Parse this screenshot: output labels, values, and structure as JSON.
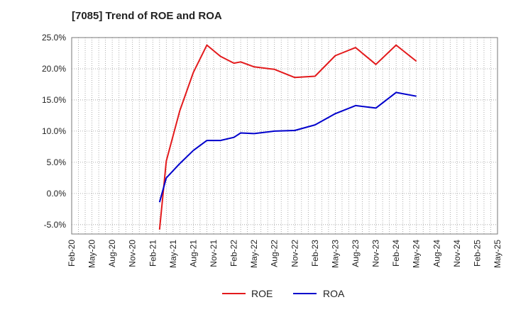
{
  "chart_data": {
    "type": "line",
    "title": "[7085]  Trend of ROE and ROA",
    "x": [
      "2021-02",
      "2021-05",
      "2021-08",
      "2021-11",
      "2022-02",
      "2022-05",
      "2022-08",
      "2022-11",
      "2023-02",
      "2023-05",
      "2023-08",
      "2023-11",
      "2024-02",
      "2024-05",
      "2024-08",
      "2024-11",
      "2025-02"
    ],
    "x_ticks": [
      "Feb-20",
      "May-20",
      "Aug-20",
      "Nov-20",
      "Feb-21",
      "May-21",
      "Aug-21",
      "Nov-21",
      "Feb-22",
      "May-22",
      "Aug-22",
      "Nov-22",
      "Feb-23",
      "May-23",
      "Aug-23",
      "Nov-23",
      "Feb-24",
      "May-24",
      "Aug-24",
      "Nov-24",
      "Feb-25",
      "May-25"
    ],
    "xlim": [
      "2020-02",
      "2025-05"
    ],
    "y_ticks": [
      "25.0%",
      "20.0%",
      "15.0%",
      "10.0%",
      "5.0%",
      "0.0%",
      "-5.0%"
    ],
    "ylim": [
      -6.5,
      25
    ],
    "series": [
      {
        "name": "ROE",
        "color": "#e31a1c",
        "points": [
          [
            "2021-03",
            -5.8
          ],
          [
            "2021-04",
            5.2
          ],
          [
            "2021-06",
            13.3
          ],
          [
            "2021-08",
            19.4
          ],
          [
            "2021-10",
            23.8
          ],
          [
            "2021-12",
            22.0
          ],
          [
            "2022-02",
            20.9
          ],
          [
            "2022-03",
            21.1
          ],
          [
            "2022-05",
            20.3
          ],
          [
            "2022-08",
            19.9
          ],
          [
            "2022-11",
            18.6
          ],
          [
            "2023-02",
            18.8
          ],
          [
            "2023-05",
            22.1
          ],
          [
            "2023-08",
            23.4
          ],
          [
            "2023-11",
            20.7
          ],
          [
            "2024-02",
            23.8
          ],
          [
            "2024-05",
            21.2
          ]
        ]
      },
      {
        "name": "ROA",
        "color": "#0000cc",
        "points": [
          [
            "2021-03",
            -1.4
          ],
          [
            "2021-04",
            2.5
          ],
          [
            "2021-06",
            4.8
          ],
          [
            "2021-08",
            6.9
          ],
          [
            "2021-10",
            8.5
          ],
          [
            "2021-12",
            8.5
          ],
          [
            "2022-02",
            9.0
          ],
          [
            "2022-03",
            9.7
          ],
          [
            "2022-05",
            9.6
          ],
          [
            "2022-08",
            10.0
          ],
          [
            "2022-11",
            10.1
          ],
          [
            "2023-02",
            11.0
          ],
          [
            "2023-05",
            12.8
          ],
          [
            "2023-08",
            14.1
          ],
          [
            "2023-11",
            13.7
          ],
          [
            "2024-02",
            16.2
          ],
          [
            "2024-05",
            15.6
          ]
        ]
      }
    ],
    "grid": true,
    "legend": "bottom-center"
  }
}
